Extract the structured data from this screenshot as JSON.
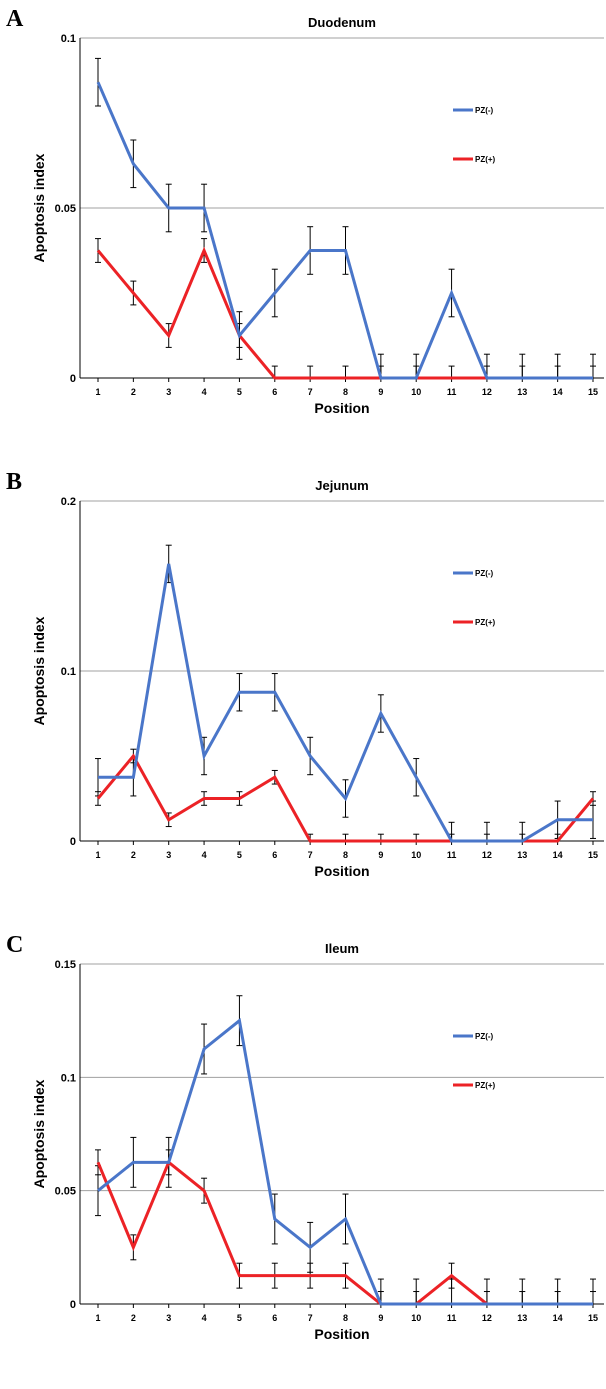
{
  "colors": {
    "series1": "#4a76c9",
    "series2": "#ec2226",
    "grid": "#a0a0a0",
    "axis": "#000000"
  },
  "chart_data": [
    {
      "panel_label": "A",
      "type": "line",
      "title": "Duodenum",
      "xlabel": "Position",
      "ylabel": "Apoptosis index",
      "x": [
        1,
        2,
        3,
        4,
        5,
        6,
        7,
        8,
        9,
        10,
        11,
        12,
        13,
        14,
        15
      ],
      "ylim": [
        0,
        0.1
      ],
      "yticks": [
        "0",
        "0.05",
        "0.1"
      ],
      "ytick_values": [
        0,
        0.05,
        0.1
      ],
      "grid": true,
      "legend_position": "top-right",
      "series": [
        {
          "name": "PZ(-)",
          "values": [
            0.087,
            0.063,
            0.05,
            0.05,
            0.0125,
            0.025,
            0.0375,
            0.0375,
            0,
            0,
            0.025,
            0,
            0,
            0,
            0
          ],
          "error": [
            0.007,
            0.007,
            0.007,
            0.007,
            0.007,
            0.007,
            0.007,
            0.007,
            0.007,
            0.007,
            0.007,
            0.007,
            0.007,
            0.007,
            0.007
          ]
        },
        {
          "name": "PZ(+)",
          "values": [
            0.0375,
            0.025,
            0.0125,
            0.0375,
            0.0125,
            0,
            0,
            0,
            0,
            0,
            0,
            0,
            0,
            0,
            0
          ],
          "error": [
            0.0035,
            0.0035,
            0.0035,
            0.0035,
            0.0035,
            0.0035,
            0.0035,
            0.0035,
            0.0035,
            0.0035,
            0.0035,
            0.0035,
            0.0035,
            0.0035,
            0.0035
          ]
        }
      ]
    },
    {
      "panel_label": "B",
      "type": "line",
      "title": "Jejunum",
      "xlabel": "Position",
      "ylabel": "Apoptosis index",
      "x": [
        1,
        2,
        3,
        4,
        5,
        6,
        7,
        8,
        9,
        10,
        11,
        12,
        13,
        14,
        15
      ],
      "ylim": [
        0,
        0.2
      ],
      "yticks": [
        "0",
        "0.1",
        "0.2"
      ],
      "ytick_values": [
        0,
        0.1,
        0.2
      ],
      "grid": true,
      "legend_position": "top-right",
      "series": [
        {
          "name": "PZ(-)",
          "values": [
            0.0375,
            0.0375,
            0.163,
            0.05,
            0.0875,
            0.0875,
            0.05,
            0.025,
            0.075,
            0.0375,
            0,
            0,
            0,
            0.0125,
            0.0125
          ],
          "error": [
            0.011,
            0.011,
            0.011,
            0.011,
            0.011,
            0.011,
            0.011,
            0.011,
            0.011,
            0.011,
            0.011,
            0.011,
            0.011,
            0.011,
            0.011
          ]
        },
        {
          "name": "PZ(+)",
          "values": [
            0.025,
            0.05,
            0.0125,
            0.025,
            0.025,
            0.0375,
            0,
            0,
            0,
            0,
            0,
            0,
            0,
            0,
            0.025
          ],
          "error": [
            0.004,
            0.004,
            0.004,
            0.004,
            0.004,
            0.004,
            0.004,
            0.004,
            0.004,
            0.004,
            0.004,
            0.004,
            0.004,
            0.004,
            0.004
          ]
        }
      ]
    },
    {
      "panel_label": "C",
      "type": "line",
      "title": "Ileum",
      "xlabel": "Position",
      "ylabel": "Apoptosis index",
      "x": [
        1,
        2,
        3,
        4,
        5,
        6,
        7,
        8,
        9,
        10,
        11,
        12,
        13,
        14,
        15
      ],
      "ylim": [
        0,
        0.15
      ],
      "yticks": [
        "0",
        "0.05",
        "0.1",
        "0.15"
      ],
      "ytick_values": [
        0,
        0.05,
        0.1,
        0.15
      ],
      "grid": true,
      "legend_position": "top-right",
      "series": [
        {
          "name": "PZ(-)",
          "values": [
            0.05,
            0.0625,
            0.0625,
            0.1125,
            0.125,
            0.0375,
            0.025,
            0.0375,
            0,
            0,
            0,
            0,
            0,
            0,
            0
          ],
          "error": [
            0.011,
            0.011,
            0.011,
            0.011,
            0.011,
            0.011,
            0.011,
            0.011,
            0.011,
            0.011,
            0.011,
            0.011,
            0.011,
            0.011,
            0.011
          ]
        },
        {
          "name": "PZ(+)",
          "values": [
            0.0625,
            0.025,
            0.0625,
            0.05,
            0.0125,
            0.0125,
            0.0125,
            0.0125,
            0,
            0,
            0.0125,
            0,
            0,
            0,
            0
          ],
          "error": [
            0.0055,
            0.0055,
            0.0055,
            0.0055,
            0.0055,
            0.0055,
            0.0055,
            0.0055,
            0.0055,
            0.0055,
            0.0055,
            0.0055,
            0.0055,
            0.0055,
            0.0055
          ]
        }
      ]
    }
  ]
}
